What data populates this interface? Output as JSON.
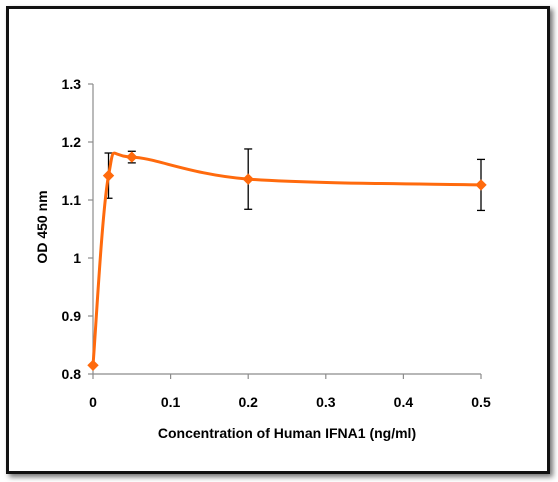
{
  "chart_data": {
    "type": "line",
    "title": "",
    "xlabel": "Concentration of Human IFNA1 (ng/ml)",
    "ylabel": "OD 450 nm",
    "xlim": [
      0,
      0.5
    ],
    "ylim": [
      0.8,
      1.3
    ],
    "x_ticks": [
      0,
      0.1,
      0.2,
      0.3,
      0.4,
      0.5
    ],
    "y_ticks": [
      0.8,
      0.9,
      1.0,
      1.1,
      1.2,
      1.3
    ],
    "x_tick_labels": [
      "0",
      "0.1",
      "0.2",
      "0.3",
      "0.4",
      "0.5"
    ],
    "y_tick_labels": [
      "0.8",
      "0.9",
      "1",
      "1.1",
      "1.2",
      "1.3"
    ],
    "grid": false,
    "legend": "none",
    "smooth": true,
    "series": [
      {
        "color": "#FF6A0D",
        "marker": "diamond",
        "x": [
          0,
          0.02,
          0.05,
          0.2,
          0.5
        ],
        "y": [
          0.815,
          1.142,
          1.174,
          1.136,
          1.126
        ],
        "error": [
          0,
          0.039,
          0.01,
          0.052,
          0.044
        ]
      }
    ]
  }
}
